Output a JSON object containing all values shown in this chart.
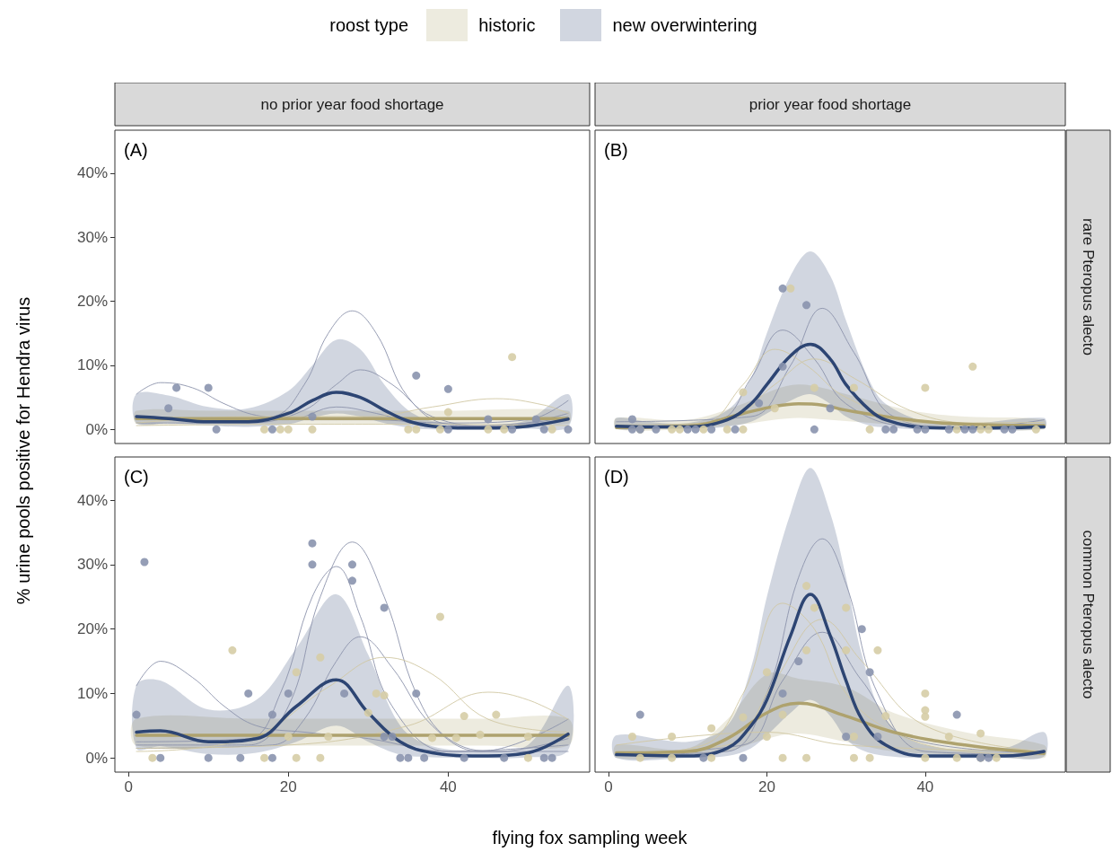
{
  "chart_data": [
    {
      "type": "line",
      "title": "no prior year food shortage",
      "ylabel": "% urine pools positive for Hendra virus",
      "legend": "top",
      "legend_title": "roost type",
      "annotations": [
        "(A)"
      ],
      "xlim": [
        -1.7,
        57.7
      ],
      "ylim": [
        -2.2,
        46.7
      ],
      "yticks": [
        {
          "value": 0,
          "label": "0%"
        },
        {
          "value": 10,
          "label": "10%"
        },
        {
          "value": 20,
          "label": "20%"
        },
        {
          "value": 30,
          "label": "30%"
        },
        {
          "value": 40,
          "label": "40%"
        }
      ],
      "tick_labels": "y",
      "series": [
        {
          "type": "scatter",
          "marker": "circle",
          "color": "#d6cda6",
          "x": [
            17,
            19,
            20,
            23,
            35,
            36,
            39,
            40,
            45,
            47,
            48,
            53
          ],
          "values": [
            0,
            0,
            0,
            0,
            0,
            0,
            0,
            2.7,
            0,
            0,
            11.3,
            0
          ]
        },
        {
          "type": "scatter",
          "marker": "circle",
          "color": "#8a94ae",
          "x": [
            5,
            6,
            10,
            11,
            18,
            23,
            36,
            40,
            40,
            45,
            48,
            51,
            52,
            55
          ],
          "values": [
            3.3,
            6.5,
            6.5,
            0,
            0,
            2,
            8.4,
            6.3,
            0,
            1.6,
            0,
            1.6,
            0,
            0
          ]
        },
        {
          "color": "#8c93ab",
          "x": [
            1,
            10,
            18,
            22,
            25,
            28,
            31,
            35,
            40,
            46,
            55
          ],
          "values": [
            2,
            1.5,
            2,
            7,
            15,
            18.5,
            15,
            5,
            0.8,
            0.5,
            1.6
          ]
        },
        {
          "color": "#8c93ab",
          "x": [
            1,
            15,
            22,
            26,
            29,
            33,
            38,
            46,
            55
          ],
          "values": [
            1,
            1,
            3,
            7,
            9.3,
            7,
            2,
            0.5,
            2.5
          ]
        },
        {
          "color": "#8c93ab",
          "x": [
            1,
            4,
            8,
            12,
            16,
            22,
            30,
            40,
            50,
            55
          ],
          "values": [
            5.5,
            7.3,
            6.5,
            4,
            2.2,
            1.5,
            1.5,
            1,
            1.5,
            4.5
          ]
        },
        {
          "color": "#8c93ab",
          "x": [
            1,
            20,
            26,
            31,
            38,
            50,
            55
          ],
          "values": [
            1.5,
            1.5,
            3.5,
            2.5,
            0.5,
            1,
            2
          ]
        },
        {
          "color": "#d0c7a3",
          "x": [
            1,
            15,
            30,
            38,
            46,
            52,
            55
          ],
          "values": [
            1,
            2,
            2,
            3.5,
            4.8,
            3.8,
            2.5
          ]
        },
        {
          "color": "#d0c7a3",
          "x": [
            1,
            20,
            35,
            55
          ],
          "values": [
            0.6,
            0.8,
            0.8,
            0.6
          ]
        },
        {
          "name": "historic",
          "color": "#aea26e",
          "x": [
            1,
            10,
            20,
            30,
            40,
            55
          ],
          "values": [
            1.7,
            1.7,
            1.7,
            1.7,
            1.7,
            1.7
          ],
          "lower": [
            0.9,
            0.9,
            0.9,
            0.9,
            0.9,
            0.9
          ],
          "upper": [
            2.9,
            2.9,
            2.9,
            2.9,
            2.9,
            2.9
          ]
        },
        {
          "name": "new overwintering",
          "color": "#2d4573",
          "x": [
            1,
            5,
            10,
            15,
            20,
            23,
            26,
            29,
            32,
            35,
            38,
            42,
            46,
            50,
            55
          ],
          "values": [
            2,
            1.7,
            1.2,
            1.2,
            2.5,
            4.5,
            5.8,
            5,
            3,
            1.3,
            0.5,
            0.2,
            0.2,
            0.5,
            1.6
          ],
          "lower": [
            1,
            1,
            0.6,
            0.4,
            0.8,
            1.8,
            2.5,
            2,
            1,
            0.3,
            0,
            0,
            0,
            0.1,
            0.4
          ],
          "upper": [
            5.5,
            5.3,
            3.5,
            3.3,
            6,
            10,
            14,
            12.5,
            7,
            3,
            1.3,
            0.8,
            0.7,
            1.5,
            5.5
          ]
        }
      ]
    },
    {
      "type": "line",
      "title": "prior year food shortage",
      "y2label": "rare Pteropus alecto",
      "annotations": [
        "(B)"
      ],
      "xlim": [
        -1.7,
        57.7
      ],
      "ylim": [
        -2.2,
        46.7
      ],
      "tick_labels": false,
      "series": [
        {
          "type": "scatter",
          "marker": "circle",
          "color": "#d6cda6",
          "x": [
            4,
            8,
            9,
            12,
            15,
            17,
            17,
            21,
            23,
            26,
            31,
            33,
            40,
            44,
            46,
            47,
            48,
            54
          ],
          "values": [
            0,
            0,
            0,
            0,
            0,
            5.8,
            0,
            3.3,
            22,
            6.5,
            6.5,
            0,
            6.5,
            0,
            9.8,
            0,
            0,
            0
          ]
        },
        {
          "type": "scatter",
          "marker": "circle",
          "color": "#8a94ae",
          "x": [
            3,
            3,
            4,
            6,
            10,
            11,
            13,
            16,
            19,
            22,
            22,
            25,
            26,
            28,
            35,
            36,
            39,
            40,
            43,
            45,
            46,
            50,
            51
          ],
          "values": [
            1.6,
            0,
            0,
            0,
            0,
            0,
            0,
            0,
            4.1,
            22,
            9.8,
            19.4,
            0,
            3.3,
            0,
            0,
            0,
            0,
            0,
            0,
            0,
            0,
            0
          ]
        },
        {
          "color": "#8c93ab",
          "x": [
            1,
            18,
            23,
            27,
            31,
            36,
            45,
            55
          ],
          "values": [
            1.2,
            2,
            10,
            18.9,
            12,
            2,
            0.2,
            1.5
          ]
        },
        {
          "color": "#8c93ab",
          "x": [
            1,
            14,
            18,
            22,
            26,
            30,
            38,
            55
          ],
          "values": [
            0.2,
            1.5,
            8,
            15.5,
            11,
            4,
            0.5,
            0.3
          ]
        },
        {
          "color": "#d0c7a3",
          "x": [
            1,
            12,
            17,
            21,
            25,
            30,
            40,
            55
          ],
          "values": [
            0.7,
            1,
            7,
            12.5,
            10,
            5,
            1,
            1.1
          ]
        },
        {
          "color": "#d0c7a3",
          "x": [
            1,
            15,
            21,
            26,
            31,
            38,
            45,
            55
          ],
          "values": [
            0.4,
            1.5,
            7,
            11,
            8,
            3,
            1,
            0.7
          ]
        },
        {
          "color": "#aea26e",
          "x": [
            1,
            10,
            17,
            21,
            24,
            27,
            30,
            38,
            45,
            55
          ],
          "values": [
            0.3,
            0.5,
            2.5,
            3.6,
            4,
            3.8,
            3,
            1.5,
            0.8,
            0.6
          ],
          "lower": [
            0,
            0.1,
            0.8,
            1.5,
            1.8,
            1.6,
            1.3,
            0.6,
            0.2,
            0
          ],
          "upper": [
            1.8,
            1.5,
            4,
            6.2,
            7,
            6.5,
            5.5,
            3,
            2,
            1.5
          ]
        },
        {
          "color": "#2d4573",
          "x": [
            1,
            5,
            10,
            15,
            18,
            20,
            23,
            25.5,
            28,
            30,
            33,
            35,
            40,
            45,
            55
          ],
          "values": [
            0.5,
            0.4,
            0.4,
            1.5,
            4,
            7,
            11.5,
            13.3,
            11,
            7,
            3,
            1.5,
            0.3,
            0.2,
            0.4
          ],
          "lower": [
            0.1,
            0.1,
            0.1,
            0.4,
            1.2,
            2.5,
            4.5,
            5.5,
            4,
            2,
            0.6,
            0.3,
            0,
            0,
            0.1
          ],
          "upper": [
            1.8,
            1.2,
            1,
            3,
            8,
            15,
            24,
            27.8,
            24,
            17,
            7.5,
            4,
            1.2,
            0.8,
            1.8
          ]
        }
      ]
    },
    {
      "type": "line",
      "xlabel": "flying fox sampling week",
      "annotations": [
        "(C)"
      ],
      "xlim": [
        -1.7,
        57.7
      ],
      "xticks": [
        0,
        20,
        40
      ],
      "ylim": [
        -2.2,
        46.7
      ],
      "yticks": [
        {
          "value": 0,
          "label": "0%"
        },
        {
          "value": 10,
          "label": "10%"
        },
        {
          "value": 20,
          "label": "20%"
        },
        {
          "value": 30,
          "label": "30%"
        },
        {
          "value": 40,
          "label": "40%"
        }
      ],
      "series": [
        {
          "type": "scatter",
          "marker": "circle",
          "color": "#d6cda6",
          "x": [
            3,
            13,
            17,
            20,
            21,
            21,
            24,
            24,
            25,
            30,
            31,
            32,
            38,
            39,
            41,
            42,
            44,
            46,
            50,
            50
          ],
          "values": [
            0,
            16.7,
            0,
            3.3,
            13.3,
            0,
            15.6,
            0,
            3.3,
            7,
            10,
            9.7,
            3.1,
            21.9,
            3.1,
            6.5,
            3.6,
            6.7,
            3.3,
            0
          ]
        },
        {
          "type": "scatter",
          "marker": "circle",
          "color": "#8a94ae",
          "x": [
            1,
            2,
            4,
            10,
            14,
            15,
            18,
            18,
            20,
            23,
            23,
            27,
            28,
            28,
            32,
            32,
            33,
            34,
            35,
            36,
            37,
            42,
            47,
            52,
            53
          ],
          "values": [
            6.7,
            30.4,
            0,
            0,
            0,
            10,
            6.7,
            0,
            10,
            33.3,
            30,
            10,
            30,
            27.5,
            23.3,
            3.3,
            3.3,
            0,
            0,
            10,
            0,
            0,
            0,
            0,
            0
          ]
        },
        {
          "color": "#8c93ab",
          "x": [
            1,
            15,
            20,
            24,
            28,
            32,
            36,
            40,
            46,
            55
          ],
          "values": [
            2,
            2,
            8,
            25,
            33.5,
            25,
            10,
            3,
            1,
            3
          ]
        },
        {
          "color": "#8c93ab",
          "x": [
            1,
            15,
            19,
            23,
            26,
            29,
            33,
            40,
            55
          ],
          "values": [
            2.5,
            3,
            10,
            25,
            29.7,
            22,
            8,
            1,
            2
          ]
        },
        {
          "color": "#8c93ab",
          "x": [
            1,
            18,
            22,
            26,
            29,
            33,
            38,
            44,
            55
          ],
          "values": [
            1.5,
            2,
            6,
            15,
            18.8,
            14,
            5,
            1,
            6
          ]
        },
        {
          "color": "#8c93ab",
          "x": [
            1,
            4,
            8,
            12,
            16,
            22,
            30,
            40,
            55
          ],
          "values": [
            11.2,
            15,
            12.5,
            8,
            5,
            4,
            3,
            1,
            1
          ]
        },
        {
          "color": "#d0c7a3",
          "x": [
            1,
            15,
            25,
            32,
            38,
            45,
            55
          ],
          "values": [
            1,
            3,
            11,
            15.6,
            13,
            6,
            4
          ]
        },
        {
          "color": "#d0c7a3",
          "x": [
            1,
            20,
            35,
            45,
            50,
            55
          ],
          "values": [
            1.5,
            2,
            5,
            10.2,
            9,
            6
          ]
        },
        {
          "color": "#aea26e",
          "x": [
            1,
            15,
            30,
            45,
            55
          ],
          "values": [
            3.5,
            3.5,
            3.5,
            3.5,
            3.5
          ],
          "lower": [
            1.9,
            1.9,
            1.9,
            1.9,
            1.9
          ],
          "upper": [
            6.1,
            6.1,
            6.1,
            6.1,
            6.1
          ]
        },
        {
          "color": "#2d4573",
          "x": [
            1,
            4,
            10,
            16,
            21,
            26,
            30,
            34,
            38,
            44,
            50,
            55
          ],
          "values": [
            4,
            4.2,
            2.5,
            3,
            8,
            12.1,
            7,
            2.5,
            0.8,
            0.3,
            0.8,
            3.7
          ],
          "lower": [
            1.5,
            1.8,
            0.6,
            0.8,
            2.5,
            5,
            2.5,
            0.5,
            0.1,
            0,
            0.1,
            1.2
          ],
          "upper": [
            11.3,
            12,
            7.5,
            9,
            17,
            25.4,
            16,
            5,
            1.8,
            1.2,
            2,
            11.2
          ]
        }
      ]
    },
    {
      "type": "line",
      "y2label": "common Pteropus alecto",
      "annotations": [
        "(D)"
      ],
      "xlim": [
        -1.7,
        57.7
      ],
      "xticks": [
        0,
        20,
        40
      ],
      "ylim": [
        -2.2,
        46.7
      ],
      "tick_labels": "x",
      "series": [
        {
          "type": "scatter",
          "marker": "circle",
          "color": "#d6cda6",
          "x": [
            3,
            4,
            8,
            8,
            13,
            13,
            17,
            20,
            20,
            22,
            22,
            25,
            25,
            25,
            26,
            30,
            30,
            31,
            31,
            33,
            34,
            35,
            40,
            40,
            40,
            40,
            43,
            44,
            47,
            47,
            49
          ],
          "values": [
            3.3,
            0,
            3.3,
            0,
            4.6,
            0,
            6.3,
            3.3,
            13.3,
            6.7,
            0,
            26.7,
            16.7,
            0,
            23.3,
            23.3,
            16.7,
            3.3,
            0,
            0,
            16.7,
            6.5,
            10,
            7.4,
            6.4,
            0,
            3.3,
            0,
            3.8,
            0,
            0
          ]
        },
        {
          "type": "scatter",
          "marker": "circle",
          "color": "#8a94ae",
          "x": [
            4,
            12,
            17,
            22,
            24,
            30,
            32,
            33,
            34,
            44,
            47,
            48
          ],
          "values": [
            6.7,
            0,
            0,
            10,
            15,
            3.3,
            20,
            13.3,
            3.3,
            6.7,
            0,
            0
          ]
        },
        {
          "color": "#8c93ab",
          "x": [
            1,
            15,
            20,
            24,
            27,
            30,
            34,
            40,
            55
          ],
          "values": [
            0.5,
            1,
            10,
            28,
            34,
            27,
            10,
            1,
            0.5
          ]
        },
        {
          "color": "#8c93ab",
          "x": [
            1,
            17,
            22,
            27,
            32,
            38,
            55
          ],
          "values": [
            0.8,
            2,
            12,
            19.5,
            12,
            3,
            0.8
          ]
        },
        {
          "color": "#d0c7a3",
          "x": [
            1,
            12,
            17,
            22,
            26,
            30,
            36,
            45,
            55
          ],
          "values": [
            0.5,
            2,
            10,
            24,
            20,
            10,
            4,
            1,
            0.5
          ]
        },
        {
          "color": "#d0c7a3",
          "x": [
            1,
            15,
            21,
            27,
            32,
            40,
            55
          ],
          "values": [
            0.8,
            2,
            12,
            21.5,
            15,
            5,
            1
          ]
        },
        {
          "color": "#d0c7a3",
          "x": [
            1,
            20,
            30,
            55
          ],
          "values": [
            2,
            4,
            2,
            1
          ]
        },
        {
          "color": "#aea26e",
          "x": [
            1,
            10,
            15,
            20,
            24,
            30,
            36,
            45,
            55
          ],
          "values": [
            0.8,
            1,
            3,
            7,
            8.5,
            6.5,
            4,
            2,
            0.7
          ],
          "lower": [
            0,
            0.3,
            1,
            3,
            3.8,
            2.5,
            1,
            0.5,
            0
          ],
          "upper": [
            2,
            1.5,
            6,
            13,
            12.3,
            11,
            7,
            4,
            2
          ]
        },
        {
          "color": "#2d4573",
          "x": [
            1,
            10,
            15,
            18,
            20,
            23,
            25.5,
            28,
            30,
            32,
            35,
            40,
            50,
            55
          ],
          "values": [
            0.5,
            0.3,
            1.5,
            5,
            9,
            19,
            25.4,
            19,
            12,
            6,
            2,
            0.3,
            0.3,
            1
          ],
          "lower": [
            0,
            0,
            0.3,
            1.5,
            3.5,
            7,
            9,
            6.5,
            3,
            1.2,
            0.3,
            0,
            0,
            0.2
          ],
          "upper": [
            3.5,
            2.5,
            5,
            14,
            25,
            38,
            45,
            38,
            28,
            16,
            6,
            2,
            1.5,
            4
          ]
        }
      ]
    }
  ]
}
